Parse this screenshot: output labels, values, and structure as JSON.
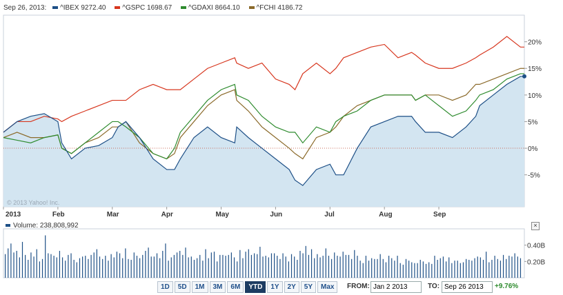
{
  "legend": {
    "date": "Sep 26, 2013:",
    "items": [
      {
        "label": "^IBEX 9272.40",
        "color": "#1d4f86"
      },
      {
        "label": "^GSPC 1698.67",
        "color": "#d7361e"
      },
      {
        "label": "^GDAXI 8664.10",
        "color": "#2e8b2e"
      },
      {
        "label": "^FCHI 4186.72",
        "color": "#8b6a2a"
      }
    ]
  },
  "copyright": "© 2013 Yahoo! Inc.",
  "volume": {
    "label": "Volume: 238,808,992",
    "close_label": "×"
  },
  "controls": {
    "ranges": [
      "1D",
      "5D",
      "1M",
      "3M",
      "6M",
      "YTD",
      "1Y",
      "2Y",
      "5Y",
      "Max"
    ],
    "active_range": "YTD",
    "from_label": "FROM:",
    "from_value": "Jan 2 2013",
    "to_label": "TO:",
    "to_value": "Sep 26 2013",
    "change": "+9.76%"
  },
  "chart_data": [
    {
      "type": "line",
      "title": "",
      "xlabel": "",
      "ylabel": "",
      "x_ticks": [
        "2013",
        "Feb",
        "Mar",
        "Apr",
        "May",
        "Jun",
        "Jul",
        "Aug",
        "Sep"
      ],
      "y_ticks": [
        "20%",
        "15%",
        "10%",
        "5%",
        "0%",
        "-5%"
      ],
      "y_tick_values": [
        20,
        15,
        10,
        5,
        0,
        -5
      ],
      "ylim": [
        -11,
        25
      ],
      "xlim": [
        0,
        268
      ],
      "x": [
        0,
        7,
        14,
        21,
        28,
        30,
        35,
        42,
        49,
        56,
        59,
        63,
        70,
        77,
        84,
        88,
        91,
        98,
        105,
        112,
        119,
        120,
        126,
        133,
        140,
        147,
        150,
        154,
        161,
        168,
        171,
        175,
        182,
        189,
        196,
        203,
        210,
        212,
        217,
        224,
        231,
        238,
        243,
        245,
        252,
        259,
        266,
        268
      ],
      "baseline": 0,
      "series": [
        {
          "name": "^IBEX 9272.40",
          "color": "#1d4f86",
          "fill": "#d3e5f1",
          "values": [
            3,
            5,
            6,
            6.5,
            5,
            1,
            -2,
            0,
            0.5,
            2,
            4,
            5,
            2,
            -2,
            -4,
            -4,
            -2,
            2,
            4,
            2,
            1,
            4,
            2,
            0,
            -2,
            -4,
            -6,
            -7,
            -4,
            -3,
            -5,
            -5,
            0,
            4,
            5,
            6,
            6,
            5,
            3,
            3,
            2,
            4,
            6,
            8,
            10,
            12,
            13.5,
            13.5
          ]
        },
        {
          "name": "^GSPC 1698.67",
          "color": "#d7361e",
          "values": [
            3,
            5,
            5,
            6,
            5.5,
            5,
            6,
            7,
            8,
            9,
            9,
            9,
            11,
            12,
            11,
            11,
            11,
            13,
            15,
            16,
            17,
            16,
            15,
            16,
            13,
            12,
            11,
            14,
            16,
            14,
            15,
            17,
            18,
            19,
            19.5,
            17,
            18,
            17.5,
            16,
            15,
            15,
            16,
            17,
            17.5,
            19,
            21,
            19,
            19
          ]
        },
        {
          "name": "^GDAXI 8664.10",
          "color": "#2e8b2e",
          "values": [
            2,
            1.5,
            1,
            2,
            2.5,
            0,
            -1,
            1,
            3,
            5,
            5,
            4,
            2,
            -1,
            -2,
            0,
            3,
            6,
            9,
            11,
            12,
            10,
            9,
            6,
            4,
            3,
            3,
            1,
            4,
            3,
            5,
            6,
            7,
            9,
            10,
            10,
            10,
            9,
            10,
            8,
            6,
            7,
            9,
            10,
            11,
            13,
            14,
            14
          ]
        },
        {
          "name": "^FCHI 4186.72",
          "color": "#8b6a2a",
          "values": [
            2,
            3,
            2,
            2,
            2.5,
            0,
            -1,
            1,
            2,
            4,
            4,
            5,
            1,
            -1,
            -2,
            -1,
            2,
            5,
            8,
            10,
            11,
            9,
            7,
            4,
            2,
            0,
            -1,
            -2,
            2,
            3,
            4,
            6,
            8,
            9,
            10,
            10,
            10,
            9,
            10,
            10,
            9,
            10,
            12,
            12,
            13,
            14,
            15,
            15
          ]
        }
      ]
    },
    {
      "type": "bar",
      "title": "Volume: 238,808,992",
      "y_ticks": [
        "0.40B",
        "0.20B"
      ],
      "y_tick_values": [
        0.4,
        0.2
      ],
      "ylim": [
        0,
        0.6
      ],
      "unit": "B",
      "values": [
        0.29,
        0.36,
        0.42,
        0.31,
        0.33,
        0.25,
        0.44,
        0.28,
        0.22,
        0.31,
        0.26,
        0.35,
        0.2,
        0.23,
        0.52,
        0.3,
        0.29,
        0.27,
        0.25,
        0.33,
        0.25,
        0.21,
        0.28,
        0.3,
        0.22,
        0.19,
        0.24,
        0.26,
        0.27,
        0.23,
        0.28,
        0.31,
        0.35,
        0.26,
        0.23,
        0.27,
        0.21,
        0.29,
        0.25,
        0.32,
        0.3,
        0.24,
        0.36,
        0.23,
        0.22,
        0.31,
        0.27,
        0.24,
        0.28,
        0.33,
        0.37,
        0.26,
        0.26,
        0.3,
        0.24,
        0.33,
        0.42,
        0.21,
        0.25,
        0.28,
        0.31,
        0.33,
        0.28,
        0.37,
        0.25,
        0.26,
        0.22,
        0.24,
        0.28,
        0.21,
        0.35,
        0.24,
        0.31,
        0.32,
        0.2,
        0.28,
        0.28,
        0.27,
        0.28,
        0.31,
        0.25,
        0.2,
        0.34,
        0.24,
        0.32,
        0.35,
        0.28,
        0.3,
        0.29,
        0.38,
        0.26,
        0.27,
        0.25,
        0.3,
        0.3,
        0.27,
        0.23,
        0.3,
        0.26,
        0.2,
        0.29,
        0.26,
        0.22,
        0.33,
        0.3,
        0.39,
        0.28,
        0.35,
        0.24,
        0.29,
        0.25,
        0.27,
        0.36,
        0.27,
        0.23,
        0.31,
        0.27,
        0.26,
        0.32,
        0.28,
        0.28,
        0.23,
        0.34,
        0.27,
        0.21,
        0.18,
        0.27,
        0.21,
        0.24,
        0.23,
        0.23,
        0.29,
        0.23,
        0.19,
        0.27,
        0.24,
        0.21,
        0.27,
        0.18,
        0.16,
        0.23,
        0.21,
        0.19,
        0.18,
        0.18,
        0.22,
        0.2,
        0.17,
        0.19,
        0.17,
        0.27,
        0.22,
        0.24,
        0.26,
        0.2,
        0.25,
        0.18,
        0.21,
        0.21,
        0.18,
        0.19,
        0.23,
        0.22,
        0.21,
        0.24,
        0.26,
        0.25,
        0.22,
        0.32,
        0.19,
        0.22,
        0.27,
        0.23,
        0.21,
        0.28,
        0.23,
        0.27,
        0.26,
        0.3,
        0.26,
        0.24
      ]
    }
  ]
}
